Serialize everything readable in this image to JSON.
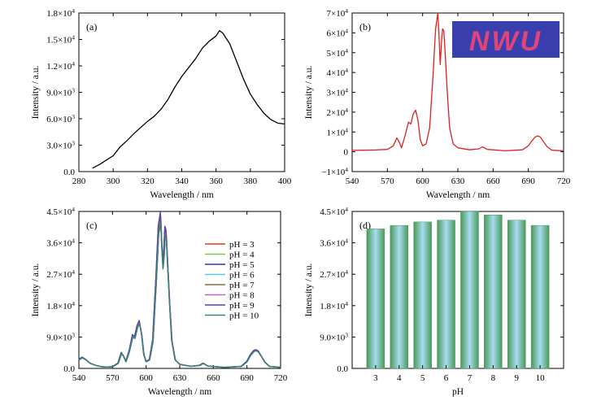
{
  "chart_data": [
    {
      "panel": "(a)",
      "type": "line",
      "xlabel": "Wavelength / nm",
      "ylabel": "Intensity / a.u.",
      "xlim": [
        280,
        400
      ],
      "ylim": [
        0,
        18000
      ],
      "xticks": [
        280,
        300,
        320,
        340,
        360,
        380,
        400
      ],
      "yticks": [
        0,
        3000,
        6000,
        9000,
        12000,
        15000,
        18000
      ],
      "ytick_labels": [
        {
          "m": "0.0",
          "e": ""
        },
        {
          "m": "3.0×10",
          "e": "3"
        },
        {
          "m": "6.0×10",
          "e": "3"
        },
        {
          "m": "9.0×10",
          "e": "3"
        },
        {
          "m": "1.2×10",
          "e": "4"
        },
        {
          "m": "1.5×10",
          "e": "4"
        },
        {
          "m": "1.8×10",
          "e": "4"
        }
      ],
      "color": "#000000",
      "series": [
        {
          "x": [
            288,
            292,
            296,
            300,
            304,
            308,
            312,
            316,
            320,
            324,
            328,
            332,
            336,
            340,
            344,
            348,
            352,
            356,
            360,
            362,
            364,
            368,
            372,
            376,
            380,
            384,
            388,
            392,
            396,
            400
          ],
          "y": [
            400,
            800,
            1300,
            1800,
            2800,
            3500,
            4300,
            5000,
            5700,
            6300,
            7100,
            8200,
            9600,
            10800,
            11800,
            12800,
            14000,
            14800,
            15400,
            16000,
            15700,
            14500,
            12500,
            10500,
            8800,
            7600,
            6600,
            5900,
            5500,
            5400
          ]
        }
      ]
    },
    {
      "panel": "(b)",
      "type": "line",
      "xlabel": "Wavelength / nm",
      "ylabel": "Intensity / a.u.",
      "xlim": [
        540,
        720
      ],
      "ylim": [
        -10000,
        70000
      ],
      "xticks": [
        540,
        570,
        600,
        630,
        660,
        690,
        720
      ],
      "yticks": [
        -10000,
        0,
        10000,
        20000,
        30000,
        40000,
        50000,
        60000,
        70000
      ],
      "ytick_labels": [
        {
          "m": "−1×10",
          "e": "4"
        },
        {
          "m": "0",
          "e": ""
        },
        {
          "m": "1×10",
          "e": "4"
        },
        {
          "m": "2×10",
          "e": "4"
        },
        {
          "m": "3×10",
          "e": "4"
        },
        {
          "m": "4×10",
          "e": "4"
        },
        {
          "m": "5×10",
          "e": "4"
        },
        {
          "m": "6×10",
          "e": "4"
        },
        {
          "m": "7×10",
          "e": "4"
        }
      ],
      "color": "#e02020",
      "inset_text": "NWU",
      "inset_text_color": "#e0457a",
      "inset_background": "#3a3fb0",
      "series": [
        {
          "x": [
            540,
            550,
            560,
            570,
            575,
            578,
            580,
            582,
            585,
            588,
            590,
            592,
            594,
            596,
            598,
            600,
            603,
            606,
            609,
            611,
            613,
            614,
            615,
            616,
            617,
            618,
            619,
            621,
            623,
            626,
            630,
            640,
            648,
            651,
            655,
            670,
            685,
            690,
            693,
            696,
            698,
            700,
            703,
            706,
            710,
            720
          ],
          "y": [
            700,
            800,
            900,
            1200,
            3000,
            7000,
            5000,
            2000,
            8000,
            15000,
            14000,
            19000,
            21000,
            16000,
            6000,
            3000,
            4000,
            12000,
            40000,
            62000,
            70000,
            58000,
            44000,
            55000,
            62000,
            61000,
            52000,
            30000,
            12000,
            4000,
            2000,
            1000,
            1500,
            2500,
            1200,
            500,
            1000,
            3000,
            5500,
            7500,
            8000,
            7500,
            5000,
            2500,
            800,
            500
          ]
        }
      ]
    },
    {
      "panel": "(c)",
      "type": "line",
      "xlabel": "Wavelength / nm",
      "ylabel": "Intensity / a.u.",
      "xlim": [
        540,
        720
      ],
      "ylim": [
        0,
        45000
      ],
      "xticks": [
        540,
        570,
        600,
        630,
        660,
        690,
        720
      ],
      "yticks": [
        0,
        9000,
        18000,
        27000,
        36000,
        45000
      ],
      "ytick_labels": [
        {
          "m": "0.0",
          "e": ""
        },
        {
          "m": "9.0×10",
          "e": "3"
        },
        {
          "m": "1.8×10",
          "e": "4"
        },
        {
          "m": "2.7×10",
          "e": "4"
        },
        {
          "m": "3.6×10",
          "e": "4"
        },
        {
          "m": "4.5×10",
          "e": "4"
        }
      ],
      "base_x": [
        540,
        543,
        546,
        550,
        555,
        560,
        565,
        570,
        575,
        578,
        580,
        582,
        585,
        588,
        590,
        592,
        594,
        596,
        598,
        600,
        603,
        606,
        609,
        611,
        613,
        614,
        615,
        616,
        617,
        618,
        619,
        621,
        623,
        626,
        630,
        640,
        648,
        651,
        655,
        670,
        685,
        690,
        693,
        696,
        698,
        700,
        703,
        706,
        710,
        720
      ],
      "base_y": [
        2500,
        3200,
        2600,
        1500,
        900,
        500,
        400,
        500,
        1500,
        4500,
        3500,
        2000,
        5000,
        9500,
        9000,
        12000,
        13500,
        10000,
        4000,
        2000,
        2500,
        8000,
        26000,
        40000,
        44000,
        36000,
        30000,
        34000,
        40000,
        39000,
        32000,
        19000,
        8000,
        2500,
        1200,
        600,
        900,
        1500,
        700,
        300,
        600,
        2000,
        3800,
        5000,
        5300,
        5000,
        3500,
        1800,
        600,
        300
      ],
      "series": [
        {
          "name": "pH = 3",
          "scale": 1.0,
          "color": "#e8302a"
        },
        {
          "name": "pH = 4",
          "scale": 0.98,
          "color": "#78c850"
        },
        {
          "name": "pH = 5",
          "scale": 0.96,
          "color": "#2a3f9a"
        },
        {
          "name": "pH = 6",
          "scale": 1.01,
          "color": "#5ec6e8"
        },
        {
          "name": "pH = 7",
          "scale": 0.99,
          "color": "#8b6b40"
        },
        {
          "name": "pH = 8",
          "scale": 0.97,
          "color": "#c060c0"
        },
        {
          "name": "pH = 9",
          "scale": 1.02,
          "color": "#5b3fa8"
        },
        {
          "name": "pH = 10",
          "scale": 0.95,
          "color": "#2e8b6e"
        }
      ]
    },
    {
      "panel": "(d)",
      "type": "bar",
      "xlabel": "pH",
      "ylabel": "Intensity / a.u.",
      "ylim": [
        0,
        45000
      ],
      "yticks": [
        0,
        9000,
        18000,
        27000,
        36000,
        45000
      ],
      "ytick_labels": [
        {
          "m": "0.0",
          "e": ""
        },
        {
          "m": "9.0×10",
          "e": "3"
        },
        {
          "m": "1.8×10",
          "e": "4"
        },
        {
          "m": "2.7×10",
          "e": "4"
        },
        {
          "m": "3.6×10",
          "e": "4"
        },
        {
          "m": "4.5×10",
          "e": "4"
        }
      ],
      "categories": [
        "3",
        "4",
        "5",
        "6",
        "7",
        "8",
        "9",
        "10"
      ],
      "values": [
        40000,
        41000,
        42000,
        42500,
        45000,
        44000,
        42500,
        41000
      ],
      "bar_color_edge": "#4a9a5a",
      "bar_color_center": "#a8dcf0"
    }
  ]
}
